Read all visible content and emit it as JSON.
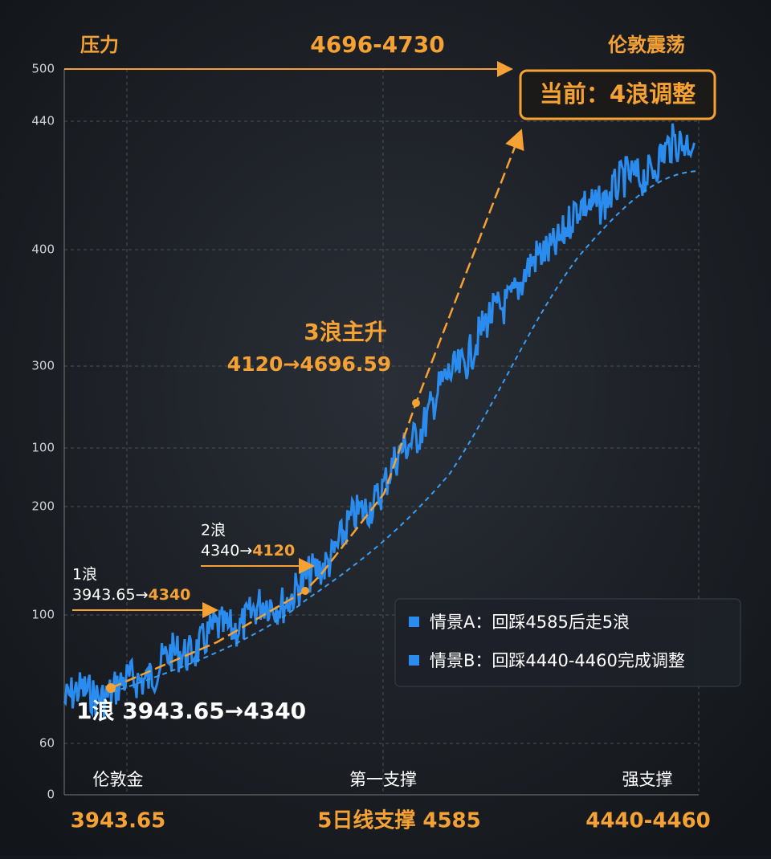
{
  "header": {
    "left": "压力",
    "center": "4696-4730",
    "right": "伦敦震荡"
  },
  "status_box": "当前：4浪调整",
  "y_axis_labels": [
    "500",
    "440",
    "400",
    "300",
    "100",
    "200",
    "100",
    "60",
    "0"
  ],
  "annotations": {
    "wave3": {
      "title": "3浪主升",
      "range": "4120→4696.59"
    },
    "wave2": {
      "title": "2浪",
      "from": "4340→",
      "to": "4120"
    },
    "wave1": {
      "title": "1浪",
      "from": "3943.65→",
      "to": "4340"
    },
    "wave1_big": "1浪 3943.65→4340"
  },
  "legend": [
    "情景A：回踩4585后走5浪",
    "情景B：回踩4440-4460完成调整"
  ],
  "x_axis_labels": [
    "伦敦金",
    "第一支撑",
    "强支撑"
  ],
  "footer": [
    "3943.65",
    "5日线支撑 4585",
    "4440-4460"
  ]
}
